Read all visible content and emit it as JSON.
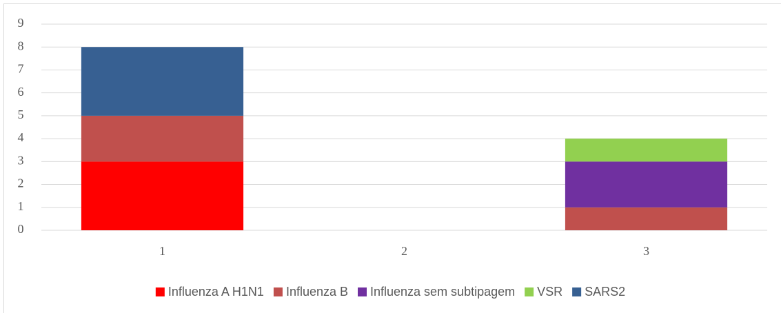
{
  "chart_data": {
    "type": "stacked_bar",
    "categories": [
      "1",
      "2",
      "3"
    ],
    "series": [
      {
        "name": "Influenza A H1N1",
        "color": "#ff0000",
        "values": [
          3,
          0,
          0
        ]
      },
      {
        "name": "Influenza B",
        "color": "#c0504d",
        "values": [
          2,
          0,
          1
        ]
      },
      {
        "name": "Influenza sem subtipagem",
        "color": "#7030a0",
        "values": [
          0,
          0,
          2
        ]
      },
      {
        "name": "VSR",
        "color": "#92d050",
        "values": [
          0,
          0,
          1
        ]
      },
      {
        "name": "SARS2",
        "color": "#376092",
        "values": [
          3,
          0,
          0
        ]
      }
    ],
    "ylim": [
      0,
      9
    ],
    "yticks": [
      0,
      1,
      2,
      3,
      4,
      5,
      6,
      7,
      8,
      9
    ],
    "grid": true,
    "legend": "bottom"
  }
}
